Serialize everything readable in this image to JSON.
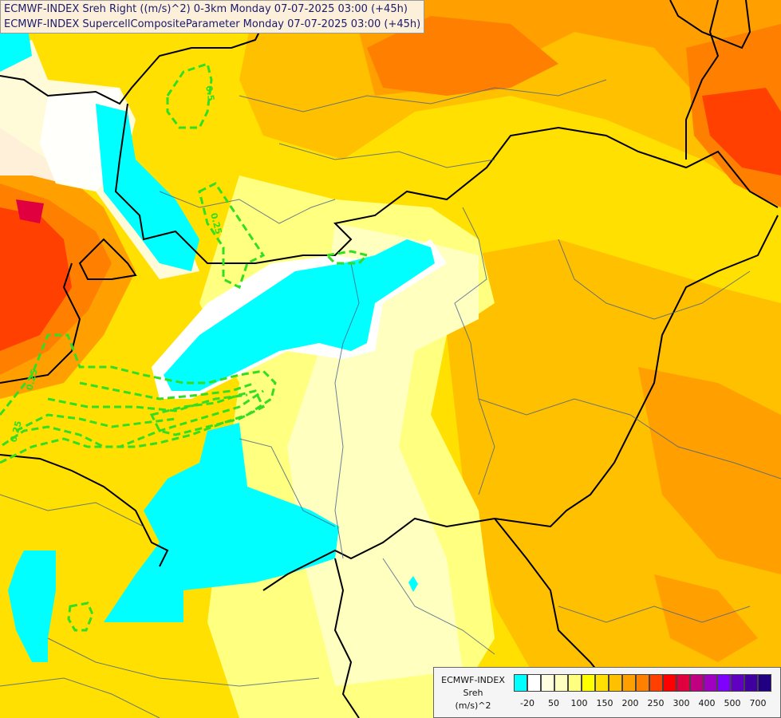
{
  "title": {
    "line1": "ECMWF-INDEX Sreh Right ((m/s)^2) 0-3km Monday 07-07-2025 03:00 (+45h)",
    "line2": "ECMWF-INDEX SupercellCompositeParameter Monday 07-07-2025 03:00 (+45h)"
  },
  "legend": {
    "source": "ECMWF-INDEX",
    "variable": "Sreh",
    "unit": "(m/s)^2",
    "colors": [
      "#00ffff",
      "#ffffff",
      "#ffffe0",
      "#ffffc0",
      "#ffff80",
      "#ffff00",
      "#ffe000",
      "#ffc000",
      "#ffa000",
      "#ff8000",
      "#ff4000",
      "#ff0000",
      "#e00040",
      "#c00080",
      "#a000c0",
      "#8000ff",
      "#6000c0",
      "#4000a0",
      "#200080"
    ],
    "ticks": [
      "-20",
      "50",
      "100",
      "150",
      "200",
      "250",
      "300",
      "400",
      "500",
      "700"
    ]
  },
  "contour_labels": [
    "0.5",
    "0.25",
    "0.25",
    "0.25"
  ],
  "colors": {
    "title_bg": "#fdf0da",
    "title_text": "#1a1a6e",
    "contour": "#33dd22"
  }
}
